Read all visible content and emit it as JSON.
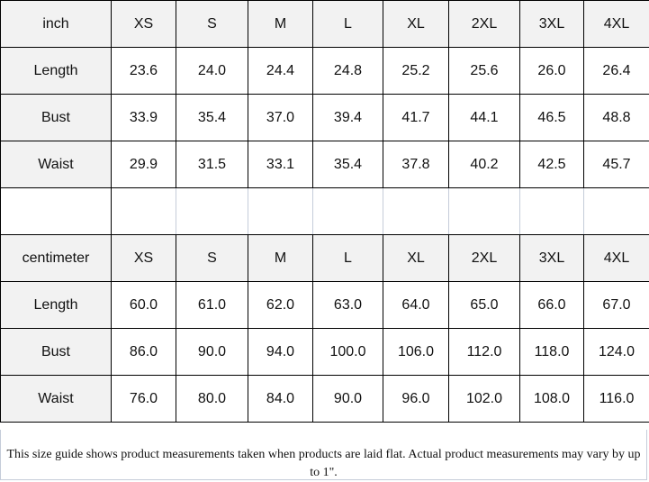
{
  "inch_table": {
    "unit": "inch",
    "sizes": [
      "XS",
      "S",
      "M",
      "L",
      "XL",
      "2XL",
      "3XL",
      "4XL"
    ],
    "rows": [
      {
        "label": "Length",
        "values": [
          "23.6",
          "24.0",
          "24.4",
          "24.8",
          "25.2",
          "25.6",
          "26.0",
          "26.4"
        ]
      },
      {
        "label": "Bust",
        "values": [
          "33.9",
          "35.4",
          "37.0",
          "39.4",
          "41.7",
          "44.1",
          "46.5",
          "48.8"
        ]
      },
      {
        "label": "Waist",
        "values": [
          "29.9",
          "31.5",
          "33.1",
          "35.4",
          "37.8",
          "40.2",
          "42.5",
          "45.7"
        ]
      }
    ]
  },
  "cm_table": {
    "unit": "centimeter",
    "sizes": [
      "XS",
      "S",
      "M",
      "L",
      "XL",
      "2XL",
      "3XL",
      "4XL"
    ],
    "rows": [
      {
        "label": "Length",
        "values": [
          "60.0",
          "61.0",
          "62.0",
          "63.0",
          "64.0",
          "65.0",
          "66.0",
          "67.0"
        ]
      },
      {
        "label": "Bust",
        "values": [
          "86.0",
          "90.0",
          "94.0",
          "100.0",
          "106.0",
          "112.0",
          "118.0",
          "124.0"
        ]
      },
      {
        "label": "Waist",
        "values": [
          "76.0",
          "80.0",
          "84.0",
          "90.0",
          "96.0",
          "102.0",
          "108.0",
          "116.0"
        ]
      }
    ]
  },
  "note": "This size guide shows product measurements taken when products are laid flat. Actual product measurements may vary by up to 1\"."
}
